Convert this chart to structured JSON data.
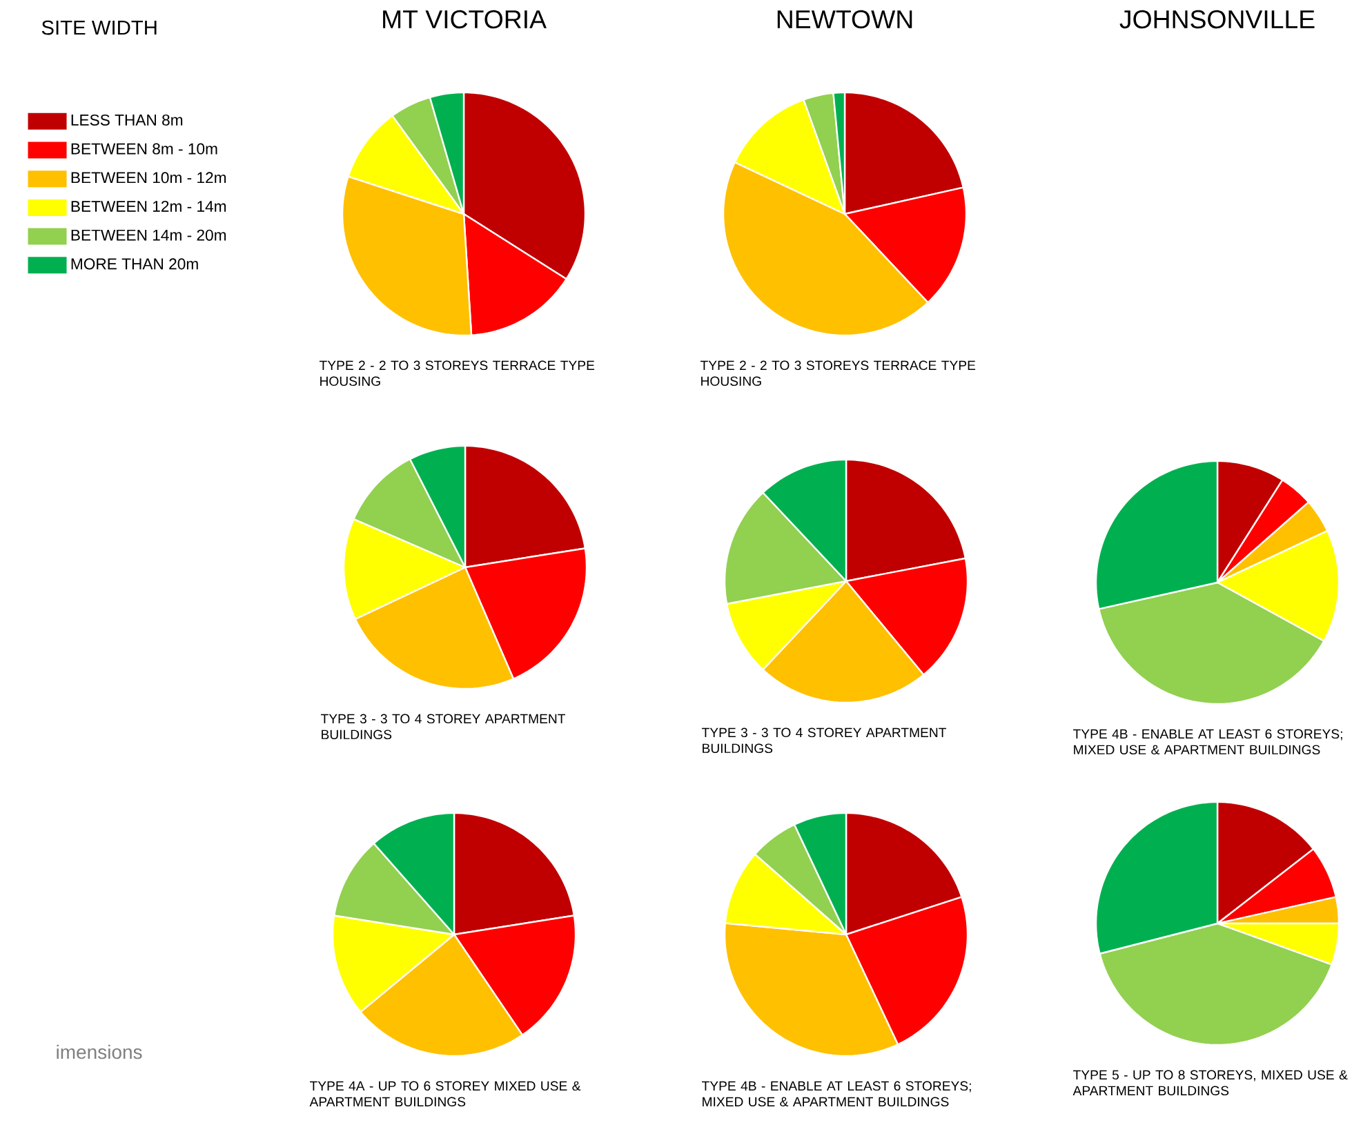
{
  "chart_data": [
    {
      "type": "pie",
      "title": "MT VICTORIA",
      "legend_title": "SITE WIDTH",
      "legend": "left",
      "categories": [
        "LESS THAN 8m",
        "BETWEEN 8m - 10m",
        "BETWEEN 10m - 12m",
        "BETWEEN 12m - 14m",
        "BETWEEN 14m - 20m",
        "MORE THAN 20m"
      ],
      "values": [
        34,
        15,
        31,
        10,
        5.5,
        4.5
      ],
      "colors": [
        "#c00000",
        "#ff0000",
        "#ffc000",
        "#ffff00",
        "#92d050",
        "#00b050"
      ],
      "annotations": [
        "TYPE 2 - 2 TO 3 STOREYS TERRACE TYPE HOUSING",
        "imensions"
      ]
    },
    {
      "type": "pie",
      "title": "NEWTOWN",
      "categories": [
        null,
        null,
        null,
        null,
        null,
        null
      ],
      "values": [
        21.5,
        16.5,
        44,
        12.5,
        4,
        1.5
      ],
      "colors": [
        "#c00000",
        "#ff0000",
        "#ffc000",
        "#ffff00",
        "#92d050",
        "#00b050"
      ],
      "annotations": [
        "TYPE 2 - 2 TO 3 STOREYS TERRACE TYPE HOUSING"
      ]
    },
    {
      "type": "pie",
      "categories": [
        null,
        null,
        null,
        null,
        null,
        null
      ],
      "values": [
        22.5,
        21,
        24.5,
        13.5,
        11,
        7.5
      ],
      "colors": [
        "#c00000",
        "#ff0000",
        "#ffc000",
        "#ffff00",
        "#92d050",
        "#00b050"
      ],
      "annotations": [
        "TYPE 3 - 3 TO 4 STOREY APARTMENT BUILDINGS"
      ]
    },
    {
      "type": "pie",
      "categories": [
        null,
        null,
        null,
        null,
        null,
        null
      ],
      "values": [
        22,
        17,
        23,
        10,
        16,
        12
      ],
      "colors": [
        "#c00000",
        "#ff0000",
        "#ffc000",
        "#ffff00",
        "#92d050",
        "#00b050"
      ],
      "annotations": [
        "TYPE 3 - 3 TO 4 STOREY APARTMENT BUILDINGS"
      ]
    },
    {
      "type": "pie",
      "title": "JOHNSONVILLE",
      "categories": [
        null,
        null,
        null,
        null,
        null,
        null
      ],
      "values": [
        9,
        4.5,
        4.5,
        15,
        38.5,
        28.5
      ],
      "colors": [
        "#c00000",
        "#ff0000",
        "#ffc000",
        "#ffff00",
        "#92d050",
        "#00b050"
      ],
      "annotations": [
        "TYPE 4B - ENABLE AT LEAST 6 STOREYS; MIXED USE & APARTMENT BUILDINGS"
      ]
    },
    {
      "type": "pie",
      "categories": [
        null,
        null,
        null,
        null,
        null,
        null
      ],
      "values": [
        22.5,
        18,
        23.5,
        13.5,
        11,
        11.5
      ],
      "colors": [
        "#c00000",
        "#ff0000",
        "#ffc000",
        "#ffff00",
        "#92d050",
        "#00b050"
      ],
      "annotations": [
        "TYPE 4A - UP TO 6 STOREY MIXED USE & APARTMENT BUILDINGS"
      ]
    },
    {
      "type": "pie",
      "categories": [
        null,
        null,
        null,
        null,
        null,
        null
      ],
      "values": [
        20,
        23,
        33.5,
        10,
        6.5,
        7
      ],
      "colors": [
        "#c00000",
        "#ff0000",
        "#ffc000",
        "#ffff00",
        "#92d050",
        "#00b050"
      ],
      "annotations": [
        "TYPE 4B - ENABLE AT LEAST 6 STOREYS; MIXED USE & APARTMENT BUILDINGS"
      ]
    },
    {
      "type": "pie",
      "categories": [
        null,
        null,
        null,
        null,
        null,
        null
      ],
      "values": [
        14.5,
        7,
        3.5,
        5.5,
        40.5,
        29
      ],
      "colors": [
        "#c00000",
        "#ff0000",
        "#ffc000",
        "#ffff00",
        "#92d050",
        "#00b050"
      ],
      "annotations": [
        "TYPE 5 - UP TO 8 STOREYS, MIXED USE & APARTMENT BUILDINGS"
      ]
    }
  ]
}
